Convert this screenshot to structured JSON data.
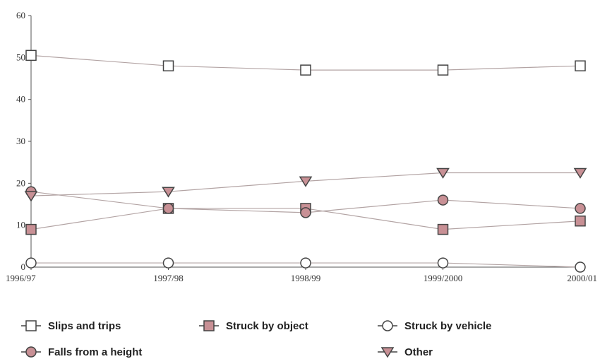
{
  "chart_data": {
    "type": "line",
    "x": [
      "1996/97",
      "1997/98",
      "1998/99",
      "1999/2000",
      "2000/01"
    ],
    "ylim": [
      0,
      60
    ],
    "yticks": [
      "0",
      "10",
      "20",
      "30",
      "40",
      "50",
      "60"
    ],
    "grid": false,
    "legend_position": "bottom",
    "series": [
      {
        "name": "Slips and trips",
        "marker": "square-open",
        "color": "#ffffff",
        "values": [
          50.5,
          48,
          47,
          47,
          48
        ]
      },
      {
        "name": "Struck by object",
        "marker": "square-filled",
        "color": "#c89095",
        "values": [
          9,
          14,
          14,
          9,
          11
        ]
      },
      {
        "name": "Struck by vehicle",
        "marker": "circle-open",
        "color": "#ffffff",
        "values": [
          1,
          1,
          1,
          1,
          0
        ]
      },
      {
        "name": "Falls from a height",
        "marker": "circle-filled",
        "color": "#c89095",
        "values": [
          18,
          14,
          13,
          16,
          14
        ]
      },
      {
        "name": "Other",
        "marker": "triangle-down-filled",
        "color": "#c89095",
        "values": [
          17,
          18,
          20.5,
          22.5,
          22.5
        ]
      }
    ]
  },
  "colors": {
    "line": "#b3a4a4",
    "axis": "#555555",
    "marker_stroke": "#444444"
  }
}
